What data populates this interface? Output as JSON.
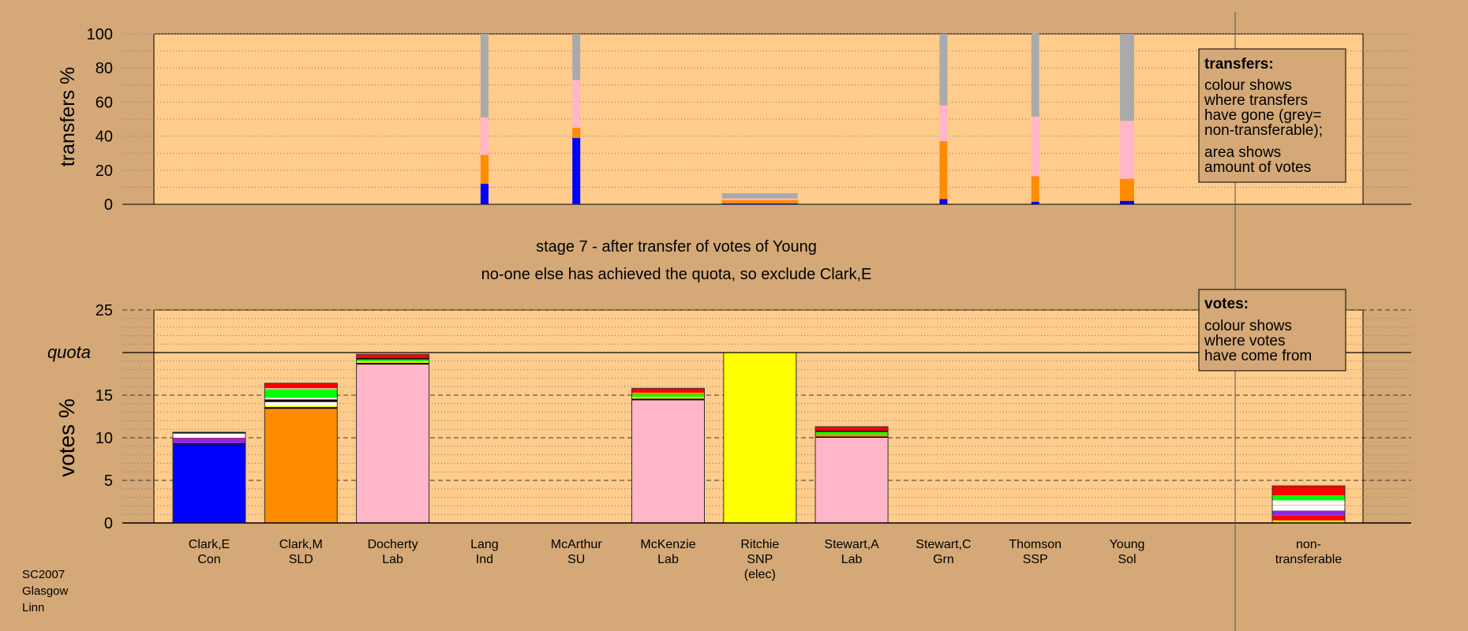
{
  "chart_data": [
    {
      "type": "bar",
      "id": "transfers",
      "title": "",
      "ylabel": "transfers %",
      "ylim": [
        0,
        100
      ],
      "yticks": [
        0,
        20,
        40,
        60,
        80,
        100
      ],
      "stack_order": [
        "blue",
        "orange",
        "pink",
        "grey"
      ],
      "series_colors": {
        "blue": "#0000ff",
        "orange": "#ff8c00",
        "pink": "#ffb6c8",
        "grey": "#aaaaaa"
      },
      "bars": [
        {
          "candidate": "Lang,Ind",
          "width": "thin",
          "values": [
            12,
            17,
            22,
            49
          ]
        },
        {
          "candidate": "McArthur,SU",
          "width": "thin",
          "values": [
            39,
            6,
            28,
            27
          ]
        },
        {
          "candidate": "Ritchie,SNP",
          "width": "wide",
          "values": [
            0.5,
            2,
            1,
            3
          ]
        },
        {
          "candidate": "Stewart,C,Grn",
          "width": "thin",
          "values": [
            3,
            34,
            21,
            42
          ]
        },
        {
          "candidate": "Thomson,SSP",
          "width": "thin",
          "values": [
            1.5,
            15,
            35,
            49
          ]
        },
        {
          "candidate": "Young,Sol",
          "width": "medium",
          "values": [
            2,
            13,
            34,
            51
          ]
        }
      ]
    },
    {
      "type": "bar",
      "id": "votes",
      "title": "",
      "ylabel": "votes %",
      "ylim": [
        0,
        25
      ],
      "yticks": [
        0,
        5,
        10,
        15,
        20,
        25
      ],
      "quota": 20,
      "quota_label": "quota",
      "bars": [
        {
          "name": "Clark,E",
          "party": "Con",
          "segments": [
            {
              "color": "#0000ff",
              "value": 9.2
            },
            {
              "color": "#000000",
              "value": 0.15
            },
            {
              "color": "#8a2be2",
              "value": 0.6
            },
            {
              "color": "#ff0000",
              "value": 0.05
            },
            {
              "color": "#ffffff",
              "value": 0.5
            },
            {
              "color": "#000000",
              "value": 0.15
            }
          ]
        },
        {
          "name": "Clark,M",
          "party": "SLD",
          "segments": [
            {
              "color": "#ff8c00",
              "value": 13.4
            },
            {
              "color": "#000000",
              "value": 0.2
            },
            {
              "color": "#ffff00",
              "value": 0.2
            },
            {
              "color": "#ffffff",
              "value": 0.4
            },
            {
              "color": "#000000",
              "value": 0.3
            },
            {
              "color": "#ffffff",
              "value": 0.2
            },
            {
              "color": "#00ff00",
              "value": 1.0
            },
            {
              "color": "#ffffff",
              "value": 0.1
            },
            {
              "color": "#ff0000",
              "value": 0.6
            }
          ]
        },
        {
          "name": "Docherty",
          "party": "Lab",
          "segments": [
            {
              "color": "#ffb6c8",
              "value": 18.6
            },
            {
              "color": "#000000",
              "value": 0.2
            },
            {
              "color": "#ffff00",
              "value": 0.2
            },
            {
              "color": "#00ff00",
              "value": 0.2
            },
            {
              "color": "#000000",
              "value": 0.15
            },
            {
              "color": "#ff0000",
              "value": 0.45
            }
          ]
        },
        {
          "name": "Lang",
          "party": "Ind",
          "segments": []
        },
        {
          "name": "McArthur",
          "party": "SU",
          "segments": []
        },
        {
          "name": "McKenzie",
          "party": "Lab",
          "segments": [
            {
              "color": "#ffb6c8",
              "value": 14.4
            },
            {
              "color": "#000000",
              "value": 0.2
            },
            {
              "color": "#ffff00",
              "value": 0.2
            },
            {
              "color": "#00ff00",
              "value": 0.3
            },
            {
              "color": "#ff8c00",
              "value": 0.2
            },
            {
              "color": "#ff0000",
              "value": 0.5
            }
          ]
        },
        {
          "name": "Ritchie",
          "party": "SNP",
          "note": "(elec)",
          "segments": [
            {
              "color": "#ffff00",
              "value": 20.0
            }
          ]
        },
        {
          "name": "Stewart,A",
          "party": "Lab",
          "segments": [
            {
              "color": "#ffb6c8",
              "value": 10.0
            },
            {
              "color": "#000000",
              "value": 0.15
            },
            {
              "color": "#ff8c00",
              "value": 0.25
            },
            {
              "color": "#00ff00",
              "value": 0.3
            },
            {
              "color": "#000000",
              "value": 0.15
            },
            {
              "color": "#ff0000",
              "value": 0.45
            }
          ]
        },
        {
          "name": "Stewart,C",
          "party": "Grn",
          "segments": []
        },
        {
          "name": "Thomson",
          "party": "SSP",
          "segments": []
        },
        {
          "name": "Young",
          "party": "Sol",
          "segments": []
        }
      ],
      "nontransferable": {
        "label_line1": "non-",
        "label_line2": "transferable",
        "segments": [
          {
            "color": "#ffff00",
            "value": 0.3
          },
          {
            "color": "#ff0000",
            "value": 0.55
          },
          {
            "color": "#8a2be2",
            "value": 0.6
          },
          {
            "color": "#ffffff",
            "value": 0.6
          },
          {
            "color": "#ff8c00",
            "value": 0.05
          },
          {
            "color": "#ffffff",
            "value": 0.55
          },
          {
            "color": "#00ff00",
            "value": 0.6
          },
          {
            "color": "#ff0000",
            "value": 1.1
          }
        ]
      }
    }
  ],
  "stage_title": "stage 7 - after transfer of votes of Young",
  "stage_subtitle": "no-one else has achieved the quota, so exclude Clark,E",
  "transfers_legend": {
    "heading": "transfers:",
    "lines1": [
      "colour shows",
      "where transfers",
      "have gone (grey=",
      "non-transferable);"
    ],
    "lines2": [
      "area shows",
      "amount of votes"
    ]
  },
  "votes_legend": {
    "heading": "votes:",
    "lines": [
      "colour shows",
      "where votes",
      "have come from"
    ]
  },
  "footer": [
    "SC2007",
    "Glasgow",
    "Linn"
  ],
  "colors": {
    "background": "#d4a977",
    "plot_area": "#ffcc8c"
  }
}
